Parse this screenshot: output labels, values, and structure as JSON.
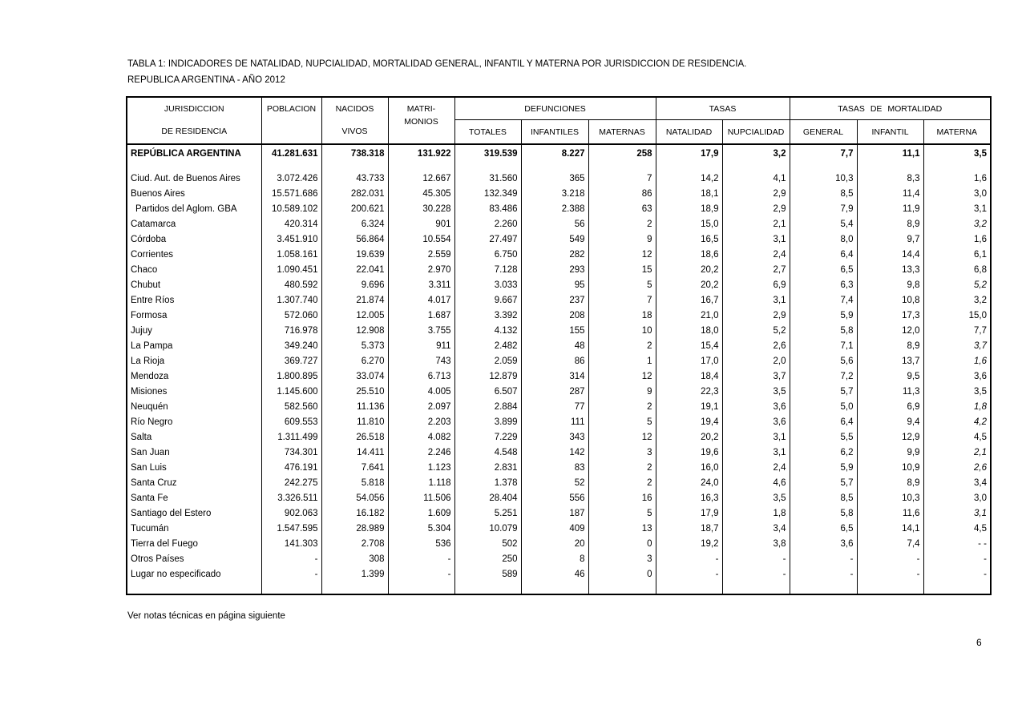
{
  "page": {
    "title_line1": "TABLA 1: INDICADORES DE NATALIDAD, NUPCIALIDAD, MORTALIDAD GENERAL, INFANTIL Y MATERNA POR JURISDICCION DE RESIDENCIA.",
    "title_line2": "REPUBLICA ARGENTINA - AÑO 2012",
    "footer_note": "Ver notas técnicas en página siguiente",
    "page_number": "6"
  },
  "table": {
    "header": {
      "jurisdiccion_line1": "JURISDICCION",
      "jurisdiccion_line2": "DE RESIDENCIA",
      "poblacion": "POBLACION",
      "nacidos_line1": "NACIDOS",
      "nacidos_line2": "VIVOS",
      "matrimonios_line1": "MATRI-",
      "matrimonios_line2": "MONIOS",
      "group_defunciones": "DEFUNCIONES",
      "group_tasas": "TASAS",
      "group_tasas_mortalidad": "TASAS DE MORTALIDAD",
      "sub": [
        "TOTALES",
        "INFANTILES",
        "MATERNAS",
        "NATALIDAD",
        "NUPCIALIDAD",
        "GENERAL",
        "INFANTIL",
        "MATERNA"
      ]
    },
    "total_row": {
      "name": "REPÚBLICA ARGENTINA",
      "values": [
        "41.281.631",
        "738.318",
        "131.922",
        "319.539",
        "8.227",
        "258",
        "17,9",
        "3,2",
        "7,7",
        "11,1",
        "3,5"
      ]
    },
    "rows": [
      {
        "name": "Ciud. Aut. de  Buenos Aires",
        "values": [
          "3.072.426",
          "43.733",
          "12.667",
          "31.560",
          "365",
          "7",
          "14,2",
          "4,1",
          "10,3",
          "8,3",
          "1,6"
        ]
      },
      {
        "name": "Buenos Aires",
        "values": [
          "15.571.686",
          "282.031",
          "45.305",
          "132.349",
          "3.218",
          "86",
          "18,1",
          "2,9",
          "8,5",
          "11,4",
          "3,0"
        ]
      },
      {
        "name": "Partidos del Aglom. GBA",
        "indent": true,
        "values": [
          "10.589.102",
          "200.621",
          "30.228",
          "83.486",
          "2.388",
          "63",
          "18,9",
          "2,9",
          "7,9",
          "11,9",
          "3,1"
        ]
      },
      {
        "name": "Catamarca",
        "materna_italic": true,
        "values": [
          "420.314",
          "6.324",
          "901",
          "2.260",
          "56",
          "2",
          "15,0",
          "2,1",
          "5,4",
          "8,9",
          "3,2"
        ]
      },
      {
        "name": "Córdoba",
        "values": [
          "3.451.910",
          "56.864",
          "10.554",
          "27.497",
          "549",
          "9",
          "16,5",
          "3,1",
          "8,0",
          "9,7",
          "1,6"
        ]
      },
      {
        "name": "Corrientes",
        "values": [
          "1.058.161",
          "19.639",
          "2.559",
          "6.750",
          "282",
          "12",
          "18,6",
          "2,4",
          "6,4",
          "14,4",
          "6,1"
        ]
      },
      {
        "name": "Chaco",
        "values": [
          "1.090.451",
          "22.041",
          "2.970",
          "7.128",
          "293",
          "15",
          "20,2",
          "2,7",
          "6,5",
          "13,3",
          "6,8"
        ]
      },
      {
        "name": "Chubut",
        "materna_italic": true,
        "values": [
          "480.592",
          "9.696",
          "3.311",
          "3.033",
          "95",
          "5",
          "20,2",
          "6,9",
          "6,3",
          "9,8",
          "5,2"
        ]
      },
      {
        "name": "Entre Ríos",
        "values": [
          "1.307.740",
          "21.874",
          "4.017",
          "9.667",
          "237",
          "7",
          "16,7",
          "3,1",
          "7,4",
          "10,8",
          "3,2"
        ]
      },
      {
        "name": "Formosa",
        "values": [
          "572.060",
          "12.005",
          "1.687",
          "3.392",
          "208",
          "18",
          "21,0",
          "2,9",
          "5,9",
          "17,3",
          "15,0"
        ]
      },
      {
        "name": "Jujuy",
        "values": [
          "716.978",
          "12.908",
          "3.755",
          "4.132",
          "155",
          "10",
          "18,0",
          "5,2",
          "5,8",
          "12,0",
          "7,7"
        ]
      },
      {
        "name": "La Pampa",
        "materna_italic": true,
        "values": [
          "349.240",
          "5.373",
          "911",
          "2.482",
          "48",
          "2",
          "15,4",
          "2,6",
          "7,1",
          "8,9",
          "3,7"
        ]
      },
      {
        "name": "La Rioja",
        "materna_italic": true,
        "values": [
          "369.727",
          "6.270",
          "743",
          "2.059",
          "86",
          "1",
          "17,0",
          "2,0",
          "5,6",
          "13,7",
          "1,6"
        ]
      },
      {
        "name": "Mendoza",
        "values": [
          "1.800.895",
          "33.074",
          "6.713",
          "12.879",
          "314",
          "12",
          "18,4",
          "3,7",
          "7,2",
          "9,5",
          "3,6"
        ]
      },
      {
        "name": "Misiones",
        "values": [
          "1.145.600",
          "25.510",
          "4.005",
          "6.507",
          "287",
          "9",
          "22,3",
          "3,5",
          "5,7",
          "11,3",
          "3,5"
        ]
      },
      {
        "name": "Neuquén",
        "materna_italic": true,
        "values": [
          "582.560",
          "11.136",
          "2.097",
          "2.884",
          "77",
          "2",
          "19,1",
          "3,6",
          "5,0",
          "6,9",
          "1,8"
        ]
      },
      {
        "name": "Río Negro",
        "materna_italic": true,
        "values": [
          "609.553",
          "11.810",
          "2.203",
          "3.899",
          "111",
          "5",
          "19,4",
          "3,6",
          "6,4",
          "9,4",
          "4,2"
        ]
      },
      {
        "name": "Salta",
        "values": [
          "1.311.499",
          "26.518",
          "4.082",
          "7.229",
          "343",
          "12",
          "20,2",
          "3,1",
          "5,5",
          "12,9",
          "4,5"
        ]
      },
      {
        "name": "San Juan",
        "materna_italic": true,
        "values": [
          "734.301",
          "14.411",
          "2.246",
          "4.548",
          "142",
          "3",
          "19,6",
          "3,1",
          "6,2",
          "9,9",
          "2,1"
        ]
      },
      {
        "name": "San Luis",
        "materna_italic": true,
        "values": [
          "476.191",
          "7.641",
          "1.123",
          "2.831",
          "83",
          "2",
          "16,0",
          "2,4",
          "5,9",
          "10,9",
          "2,6"
        ]
      },
      {
        "name": "Santa Cruz",
        "values": [
          "242.275",
          "5.818",
          "1.118",
          "1.378",
          "52",
          "2",
          "24,0",
          "4,6",
          "5,7",
          "8,9",
          "3,4"
        ]
      },
      {
        "name": "Santa Fe",
        "values": [
          "3.326.511",
          "54.056",
          "11.506",
          "28.404",
          "556",
          "16",
          "16,3",
          "3,5",
          "8,5",
          "10,3",
          "3,0"
        ]
      },
      {
        "name": "Santiago del Estero",
        "materna_italic": true,
        "values": [
          "902.063",
          "16.182",
          "1.609",
          "5.251",
          "187",
          "5",
          "17,9",
          "1,8",
          "5,8",
          "11,6",
          "3,1"
        ]
      },
      {
        "name": "Tucumán",
        "values": [
          "1.547.595",
          "28.989",
          "5.304",
          "10.079",
          "409",
          "13",
          "18,7",
          "3,4",
          "6,5",
          "14,1",
          "4,5"
        ]
      },
      {
        "name": "Tierra del Fuego",
        "values": [
          "141.303",
          "2.708",
          "536",
          "502",
          "20",
          "0",
          "19,2",
          "3,8",
          "3,6",
          "7,4",
          "- -"
        ]
      },
      {
        "name": "Otros Países",
        "values": [
          "-",
          "308",
          "-",
          "250",
          "8",
          "3",
          "-",
          "-",
          "-",
          "-",
          "-"
        ]
      },
      {
        "name": "Lugar no especificado",
        "values": [
          "-",
          "1.399",
          "-",
          "589",
          "46",
          "0",
          "-",
          "-",
          "-",
          "-",
          "-"
        ]
      }
    ]
  }
}
